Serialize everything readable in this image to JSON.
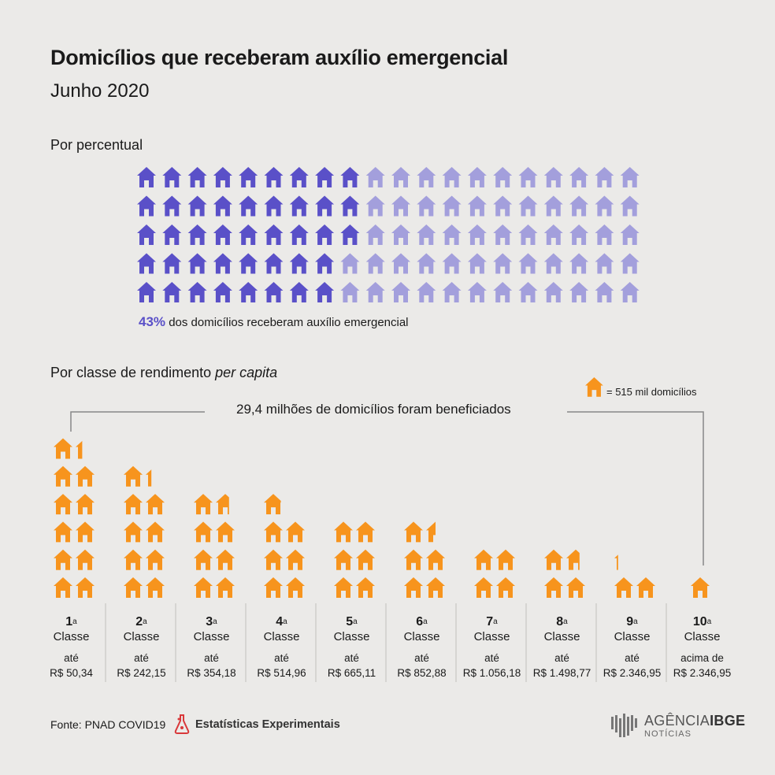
{
  "header": {
    "title": "Domicílios que receberam auxílio emergencial",
    "subtitle": "Junho 2020"
  },
  "section_percent": {
    "label": "Por percentual",
    "highlight": "43%",
    "caption": "dos domicílios receberam auxílio emergencial"
  },
  "section_class": {
    "label_prefix": "Por classe de rendimento",
    "label_italic": "per capita",
    "legend": "= 515 mil domicílios",
    "total": "29,4 milhões de domicílios foram beneficiados"
  },
  "colors": {
    "dark_purple": "#5a50c8",
    "light_purple": "#a39fdc",
    "orange": "#f7941d",
    "background": "#ebeae8",
    "line": "#888888"
  },
  "chart_data": [
    {
      "type": "waffle",
      "title": "Por percentual",
      "rows": 5,
      "cols": 20,
      "total": 100,
      "highlighted": 43,
      "value_label": "43%"
    },
    {
      "type": "pictograph",
      "title": "Por classe de rendimento per capita",
      "unit": "515 mil domicílios",
      "total_label": "29,4 milhões de domicílios foram beneficiados",
      "columns_per_class": 2,
      "categories": [
        "1ª Classe",
        "2ª Classe",
        "3ª Classe",
        "4ª Classe",
        "5ª Classe",
        "6ª Classe",
        "7ª Classe",
        "8ª Classe",
        "9ª Classe",
        "10ª Classe"
      ],
      "values": [
        11.35,
        9.3,
        7.7,
        6.9,
        6.0,
        5.5,
        4.0,
        3.7,
        2.2,
        1.0
      ],
      "classes": [
        {
          "num": "1",
          "sup": "a",
          "word": "Classe",
          "prefix": "até",
          "value": "R$ 50,34"
        },
        {
          "num": "2",
          "sup": "a",
          "word": "Classe",
          "prefix": "até",
          "value": "R$ 242,15"
        },
        {
          "num": "3",
          "sup": "a",
          "word": "Classe",
          "prefix": "até",
          "value": "R$ 354,18"
        },
        {
          "num": "4",
          "sup": "a",
          "word": "Classe",
          "prefix": "até",
          "value": "R$ 514,96"
        },
        {
          "num": "5",
          "sup": "a",
          "word": "Classe",
          "prefix": "até",
          "value": "R$ 665,11"
        },
        {
          "num": "6",
          "sup": "a",
          "word": "Classe",
          "prefix": "até",
          "value": "R$ 852,88"
        },
        {
          "num": "7",
          "sup": "a",
          "word": "Classe",
          "prefix": "até",
          "value": "R$ 1.056,18"
        },
        {
          "num": "8",
          "sup": "a",
          "word": "Classe",
          "prefix": "até",
          "value": "R$ 1.498,77"
        },
        {
          "num": "9",
          "sup": "a",
          "word": "Classe",
          "prefix": "até",
          "value": "R$ 2.346,95"
        },
        {
          "num": "10",
          "sup": "a",
          "word": "Classe",
          "prefix": "acima de",
          "value": "R$ 2.346,95"
        }
      ]
    }
  ],
  "footer": {
    "source": "Fonte: PNAD COVID19",
    "experimental": "Estatísticas Experimentais",
    "brand_a": "AGÊNCIA",
    "brand_b": "IBGE",
    "brand_sub": "NOTÍCIAS"
  }
}
